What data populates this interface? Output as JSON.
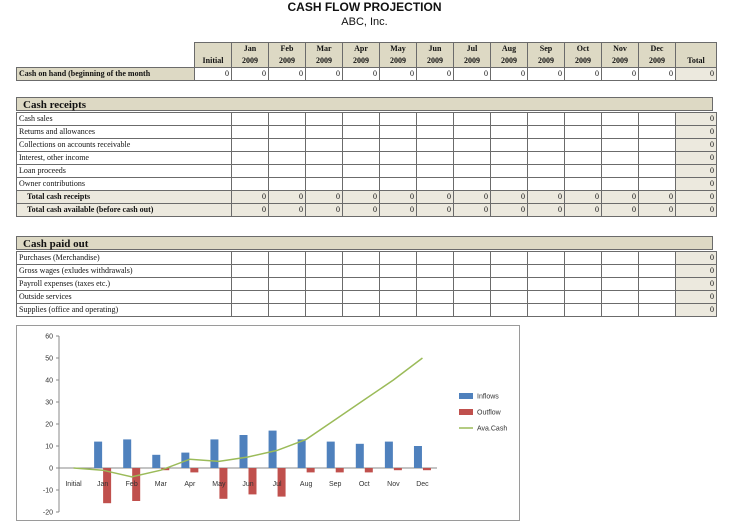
{
  "header": {
    "title": "CASH FLOW PROJECTION",
    "company": "ABC, Inc."
  },
  "columns": [
    {
      "top": "",
      "bottom": "Initial"
    },
    {
      "top": "Jan",
      "bottom": "2009"
    },
    {
      "top": "Feb",
      "bottom": "2009"
    },
    {
      "top": "Mar",
      "bottom": "2009"
    },
    {
      "top": "Apr",
      "bottom": "2009"
    },
    {
      "top": "May",
      "bottom": "2009"
    },
    {
      "top": "Jun",
      "bottom": "2009"
    },
    {
      "top": "Jul",
      "bottom": "2009"
    },
    {
      "top": "Aug",
      "bottom": "2009"
    },
    {
      "top": "Sep",
      "bottom": "2009"
    },
    {
      "top": "Oct",
      "bottom": "2009"
    },
    {
      "top": "Nov",
      "bottom": "2009"
    },
    {
      "top": "Dec",
      "bottom": "2009"
    },
    {
      "top": "",
      "bottom": "Total"
    }
  ],
  "cash_on_hand": {
    "label": "Cash on hand (beginning of the month",
    "values": [
      "0",
      "0",
      "0",
      "0",
      "0",
      "0",
      "0",
      "0",
      "0",
      "0",
      "0",
      "0",
      "0",
      "0"
    ]
  },
  "receipts": {
    "section_label": "Cash receipts",
    "rows": [
      {
        "label": "Cash sales",
        "total": "0"
      },
      {
        "label": "Returns and allowances",
        "total": "0"
      },
      {
        "label": "Collections on accounts receivable",
        "total": "0"
      },
      {
        "label": "Interest, other income",
        "total": "0"
      },
      {
        "label": "Loan proceeds",
        "total": "0"
      },
      {
        "label": "Owner contributions",
        "total": "0"
      }
    ],
    "total_receipts": {
      "label": "Total cash receipts",
      "values": [
        "0",
        "0",
        "0",
        "0",
        "0",
        "0",
        "0",
        "0",
        "0",
        "0",
        "0",
        "0",
        "0"
      ]
    },
    "total_available": {
      "label": "Total cash available (before cash out)",
      "values": [
        "0",
        "0",
        "0",
        "0",
        "0",
        "0",
        "0",
        "0",
        "0",
        "0",
        "0",
        "0",
        "0"
      ]
    }
  },
  "paid_out": {
    "section_label": "Cash paid out",
    "rows": [
      {
        "label": "Purchases (Merchandise)",
        "total": "0"
      },
      {
        "label": "Gross wages (exludes withdrawals)",
        "total": "0"
      },
      {
        "label": "Payroll expenses (taxes etc.)",
        "total": "0"
      },
      {
        "label": "Outside services",
        "total": "0"
      },
      {
        "label": "Supplies (office and operating)",
        "total": "0"
      }
    ]
  },
  "chart_data": {
    "type": "bar",
    "categories": [
      "Initial",
      "Jan",
      "Feb",
      "Mar",
      "Apr",
      "May",
      "Jun",
      "Jul",
      "Aug",
      "Sep",
      "Oct",
      "Nov",
      "Dec"
    ],
    "series": [
      {
        "name": "Inflows",
        "type": "bar",
        "color": "#4f81bd",
        "values": [
          0,
          12,
          13,
          6,
          7,
          13,
          15,
          17,
          13,
          12,
          11,
          12,
          10
        ]
      },
      {
        "name": "Outflow",
        "type": "bar",
        "color": "#c0504d",
        "values": [
          0,
          -16,
          -15,
          -1,
          -2,
          -14,
          -12,
          -13,
          -2,
          -2,
          -2,
          -1,
          -1
        ]
      },
      {
        "name": "Ava.Cash",
        "type": "line",
        "color": "#9bbb59",
        "values": [
          0,
          -1,
          -4,
          -1,
          4,
          3,
          5,
          8,
          13,
          22,
          31,
          40,
          50
        ]
      }
    ],
    "ylim": [
      -20,
      60
    ],
    "yticks": [
      "60",
      "50",
      "40",
      "30",
      "20",
      "10",
      "0",
      "-10",
      "-20"
    ],
    "legend_position": "right",
    "grid": false
  }
}
